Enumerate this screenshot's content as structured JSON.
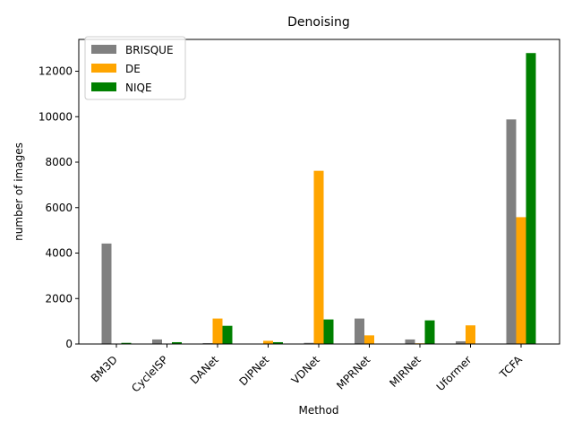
{
  "chart_data": {
    "type": "bar",
    "title": "Denoising",
    "xlabel": "Method",
    "ylabel": "number of images",
    "ylim": [
      0,
      13400
    ],
    "yticks": [
      0,
      2000,
      4000,
      6000,
      8000,
      10000,
      12000
    ],
    "ytick_labels": [
      "0",
      "2000",
      "4000",
      "6000",
      "8000",
      "10000",
      "12000"
    ],
    "grid": false,
    "legend_position": "top-left",
    "categories": [
      "BM3D",
      "CycleISP",
      "DANet",
      "DIPNet",
      "VDNet",
      "MPRNet",
      "MIRNet",
      "Uformer",
      "TCFA"
    ],
    "series": [
      {
        "name": "BRISQUE",
        "color": "#808080",
        "values": [
          4420,
          200,
          40,
          0,
          50,
          1120,
          200,
          120,
          9880
        ]
      },
      {
        "name": "DE",
        "color": "#ffa500",
        "values": [
          0,
          0,
          1120,
          140,
          7620,
          380,
          30,
          820,
          5580
        ]
      },
      {
        "name": "NIQE",
        "color": "#008000",
        "values": [
          50,
          80,
          800,
          80,
          1080,
          0,
          1040,
          0,
          12800
        ]
      }
    ]
  }
}
